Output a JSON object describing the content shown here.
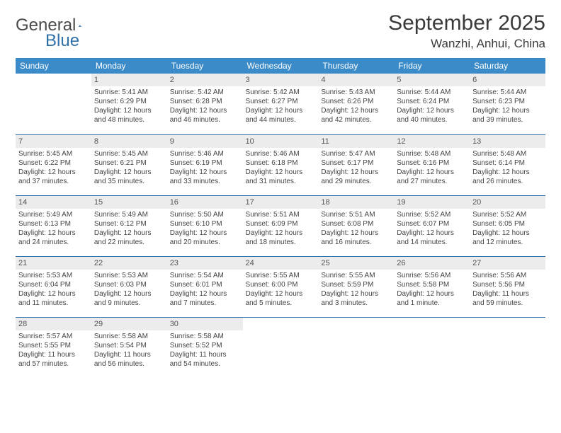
{
  "brand": {
    "text1": "General",
    "text2": "Blue",
    "color_general": "#4a4a4a",
    "color_blue": "#2f70a8"
  },
  "title": "September 2025",
  "location": "Wanzhi, Anhui, China",
  "header_bg": "#3b8bc9",
  "rule_color": "#2f70a8",
  "daynum_bg": "#ececec",
  "weekdays": [
    "Sunday",
    "Monday",
    "Tuesday",
    "Wednesday",
    "Thursday",
    "Friday",
    "Saturday"
  ],
  "start_offset": 1,
  "days": [
    {
      "n": 1,
      "sr": "5:41 AM",
      "ss": "6:29 PM",
      "dl": "12 hours and 48 minutes."
    },
    {
      "n": 2,
      "sr": "5:42 AM",
      "ss": "6:28 PM",
      "dl": "12 hours and 46 minutes."
    },
    {
      "n": 3,
      "sr": "5:42 AM",
      "ss": "6:27 PM",
      "dl": "12 hours and 44 minutes."
    },
    {
      "n": 4,
      "sr": "5:43 AM",
      "ss": "6:26 PM",
      "dl": "12 hours and 42 minutes."
    },
    {
      "n": 5,
      "sr": "5:44 AM",
      "ss": "6:24 PM",
      "dl": "12 hours and 40 minutes."
    },
    {
      "n": 6,
      "sr": "5:44 AM",
      "ss": "6:23 PM",
      "dl": "12 hours and 39 minutes."
    },
    {
      "n": 7,
      "sr": "5:45 AM",
      "ss": "6:22 PM",
      "dl": "12 hours and 37 minutes."
    },
    {
      "n": 8,
      "sr": "5:45 AM",
      "ss": "6:21 PM",
      "dl": "12 hours and 35 minutes."
    },
    {
      "n": 9,
      "sr": "5:46 AM",
      "ss": "6:19 PM",
      "dl": "12 hours and 33 minutes."
    },
    {
      "n": 10,
      "sr": "5:46 AM",
      "ss": "6:18 PM",
      "dl": "12 hours and 31 minutes."
    },
    {
      "n": 11,
      "sr": "5:47 AM",
      "ss": "6:17 PM",
      "dl": "12 hours and 29 minutes."
    },
    {
      "n": 12,
      "sr": "5:48 AM",
      "ss": "6:16 PM",
      "dl": "12 hours and 27 minutes."
    },
    {
      "n": 13,
      "sr": "5:48 AM",
      "ss": "6:14 PM",
      "dl": "12 hours and 26 minutes."
    },
    {
      "n": 14,
      "sr": "5:49 AM",
      "ss": "6:13 PM",
      "dl": "12 hours and 24 minutes."
    },
    {
      "n": 15,
      "sr": "5:49 AM",
      "ss": "6:12 PM",
      "dl": "12 hours and 22 minutes."
    },
    {
      "n": 16,
      "sr": "5:50 AM",
      "ss": "6:10 PM",
      "dl": "12 hours and 20 minutes."
    },
    {
      "n": 17,
      "sr": "5:51 AM",
      "ss": "6:09 PM",
      "dl": "12 hours and 18 minutes."
    },
    {
      "n": 18,
      "sr": "5:51 AM",
      "ss": "6:08 PM",
      "dl": "12 hours and 16 minutes."
    },
    {
      "n": 19,
      "sr": "5:52 AM",
      "ss": "6:07 PM",
      "dl": "12 hours and 14 minutes."
    },
    {
      "n": 20,
      "sr": "5:52 AM",
      "ss": "6:05 PM",
      "dl": "12 hours and 12 minutes."
    },
    {
      "n": 21,
      "sr": "5:53 AM",
      "ss": "6:04 PM",
      "dl": "12 hours and 11 minutes."
    },
    {
      "n": 22,
      "sr": "5:53 AM",
      "ss": "6:03 PM",
      "dl": "12 hours and 9 minutes."
    },
    {
      "n": 23,
      "sr": "5:54 AM",
      "ss": "6:01 PM",
      "dl": "12 hours and 7 minutes."
    },
    {
      "n": 24,
      "sr": "5:55 AM",
      "ss": "6:00 PM",
      "dl": "12 hours and 5 minutes."
    },
    {
      "n": 25,
      "sr": "5:55 AM",
      "ss": "5:59 PM",
      "dl": "12 hours and 3 minutes."
    },
    {
      "n": 26,
      "sr": "5:56 AM",
      "ss": "5:58 PM",
      "dl": "12 hours and 1 minute."
    },
    {
      "n": 27,
      "sr": "5:56 AM",
      "ss": "5:56 PM",
      "dl": "11 hours and 59 minutes."
    },
    {
      "n": 28,
      "sr": "5:57 AM",
      "ss": "5:55 PM",
      "dl": "11 hours and 57 minutes."
    },
    {
      "n": 29,
      "sr": "5:58 AM",
      "ss": "5:54 PM",
      "dl": "11 hours and 56 minutes."
    },
    {
      "n": 30,
      "sr": "5:58 AM",
      "ss": "5:52 PM",
      "dl": "11 hours and 54 minutes."
    }
  ],
  "labels": {
    "sunrise": "Sunrise:",
    "sunset": "Sunset:",
    "daylight": "Daylight:"
  }
}
